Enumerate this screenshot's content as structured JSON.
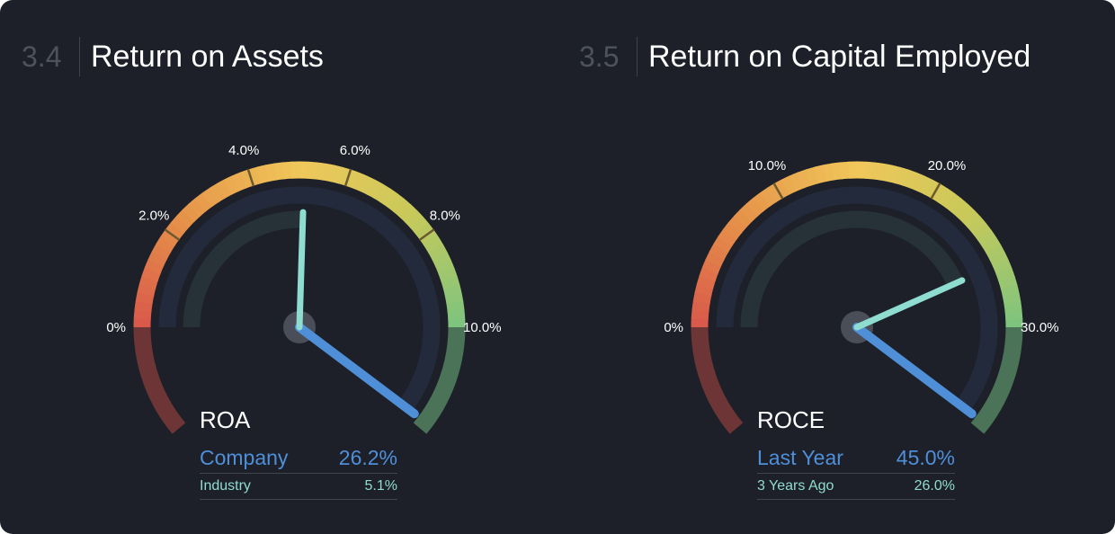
{
  "chart_data": [
    {
      "type": "gauge",
      "number": "3.4",
      "title": "Return on Assets",
      "metric": "ROA",
      "range": [
        0,
        10
      ],
      "tick_labels": [
        "0%",
        "2.0%",
        "4.0%",
        "6.0%",
        "8.0%",
        "10.0%"
      ],
      "series": [
        {
          "name": "Company",
          "value": 26.2,
          "label": "26.2%",
          "color": "#4f8fd8"
        },
        {
          "name": "Industry",
          "value": 5.1,
          "label": "5.1%",
          "color": "#8fdcd0"
        }
      ]
    },
    {
      "type": "gauge",
      "number": "3.5",
      "title": "Return on Capital Employed",
      "metric": "ROCE",
      "range": [
        0,
        30
      ],
      "tick_labels": [
        "0%",
        "10.0%",
        "20.0%",
        "30.0%"
      ],
      "series": [
        {
          "name": "Last Year",
          "value": 45.0,
          "label": "45.0%",
          "color": "#4f8fd8"
        },
        {
          "name": "3 Years Ago",
          "value": 26.0,
          "label": "26.0%",
          "color": "#8fdcd0"
        }
      ]
    }
  ],
  "colors": {
    "background": "#1d2029",
    "low": "#d9584a",
    "mid": "#f0c75a",
    "high": "#7cc47f"
  }
}
